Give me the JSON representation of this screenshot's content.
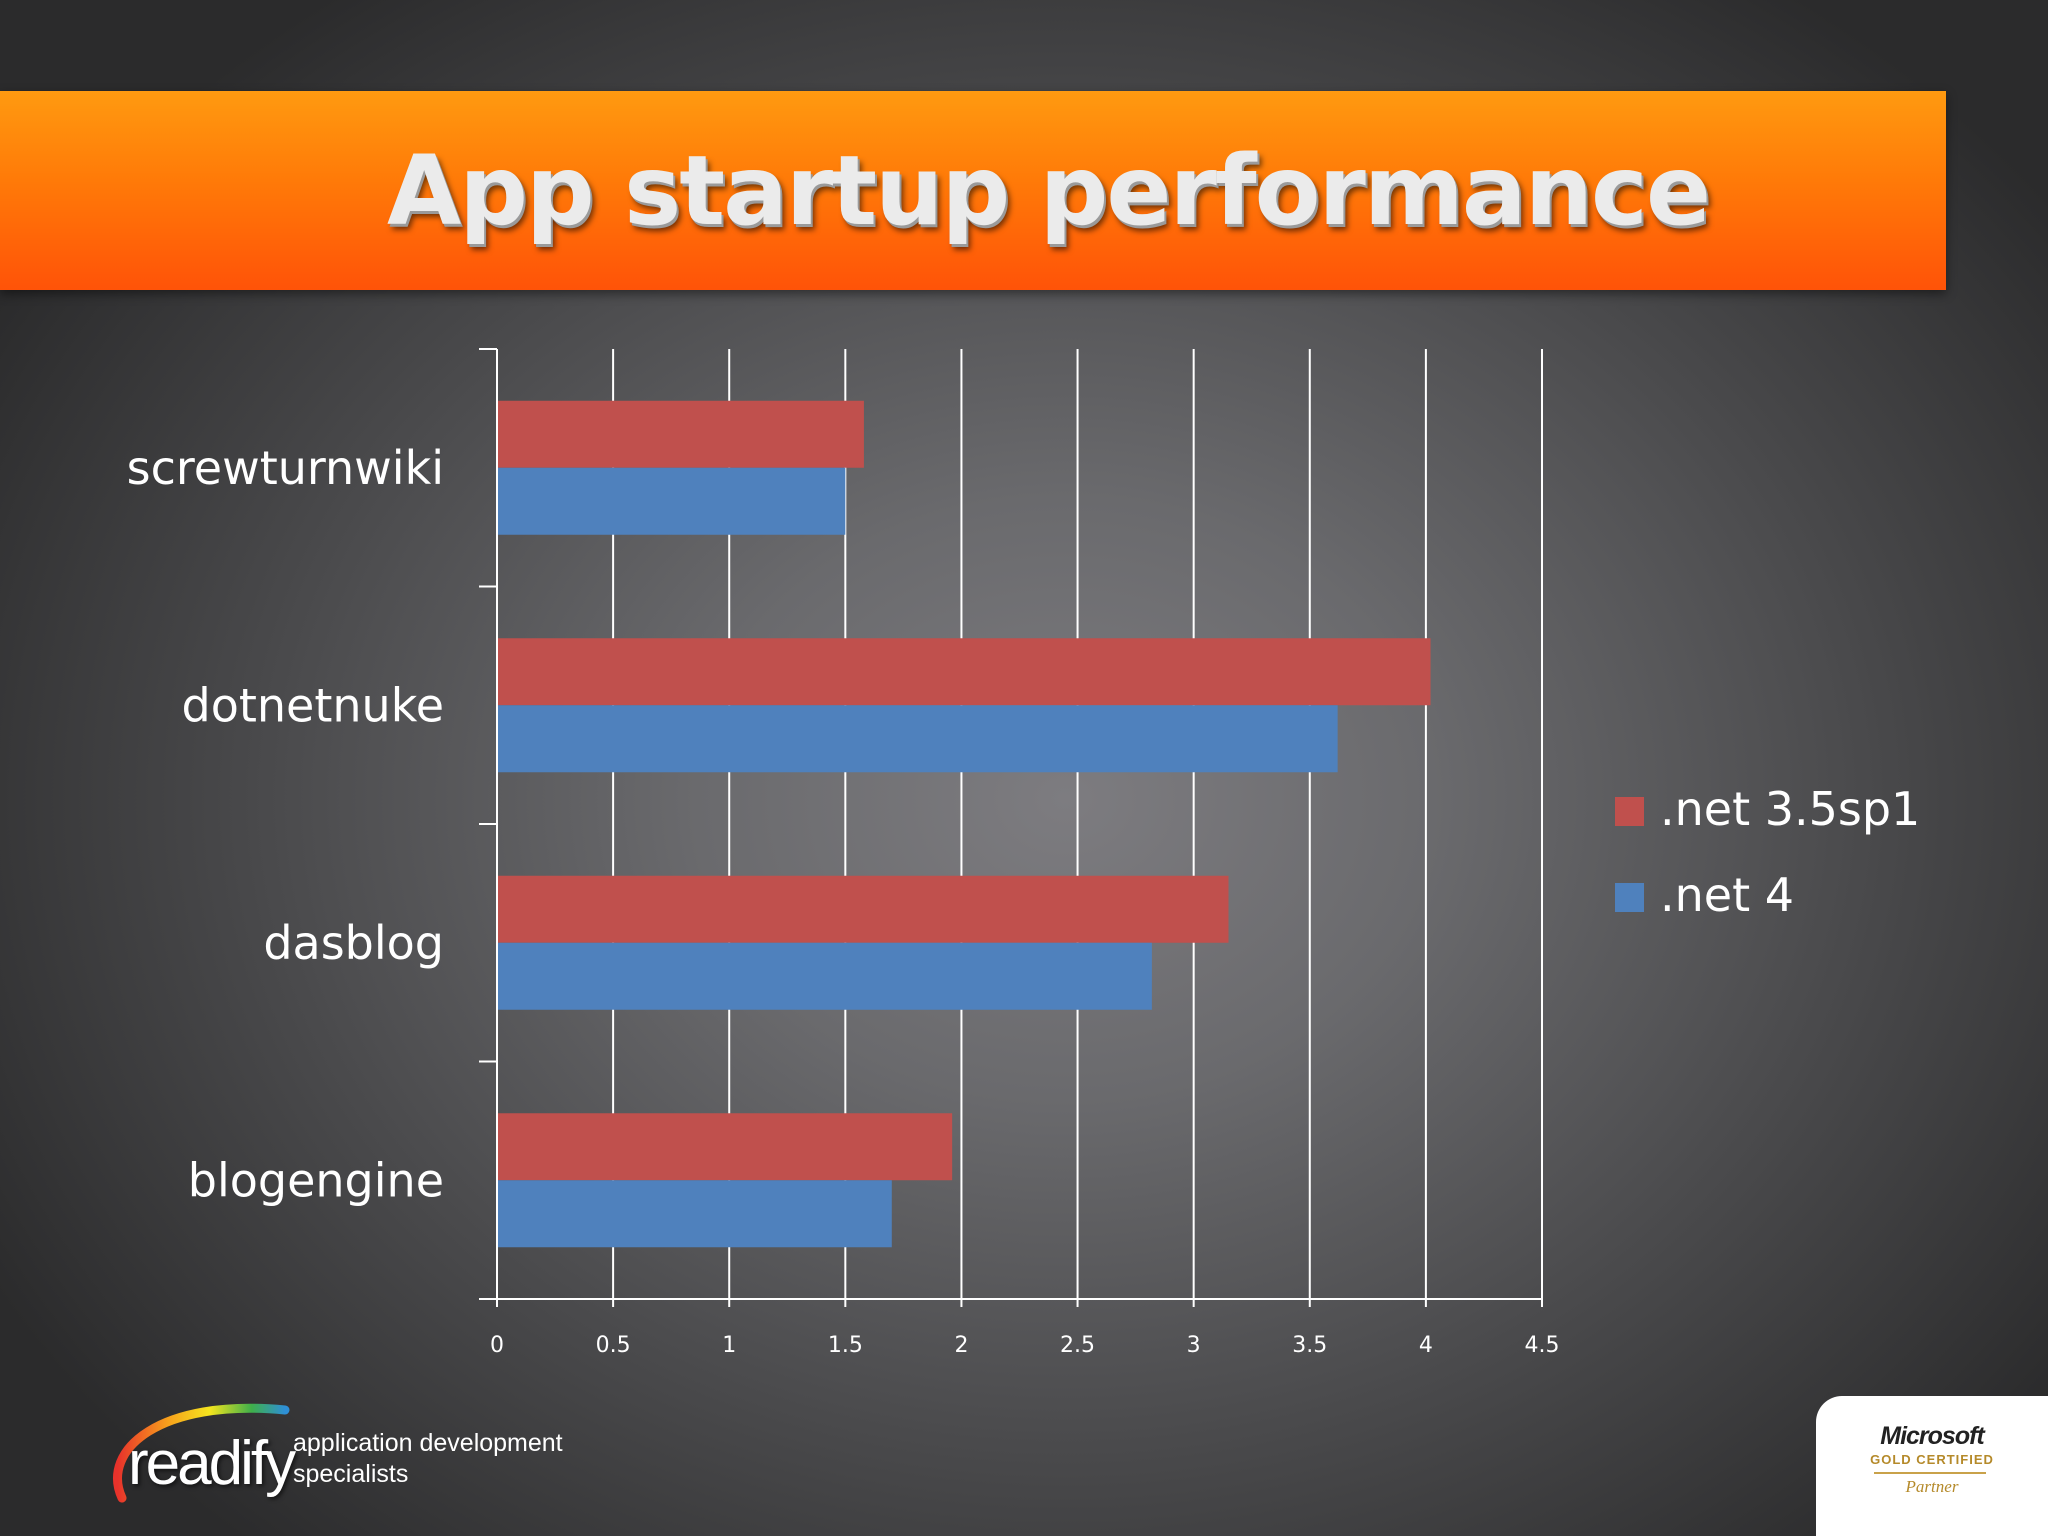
{
  "slide": {
    "title": "App startup performance"
  },
  "chart_data": {
    "type": "bar",
    "orientation": "horizontal",
    "title": "",
    "xlabel": "",
    "ylabel": "",
    "categories": [
      "screwturnwiki",
      "dotnetnuke",
      "dasblog",
      "blogengine"
    ],
    "series": [
      {
        "name": ".net 3.5sp1",
        "color": "#c0504d",
        "values": [
          1.58,
          4.02,
          3.15,
          1.96
        ]
      },
      {
        "name": ".net 4",
        "color": "#4f81bd",
        "values": [
          1.5,
          3.62,
          2.82,
          1.7
        ]
      }
    ],
    "xlim": [
      0,
      4.5
    ],
    "xticks": [
      "0",
      "0.5",
      "1",
      "1.5",
      "2",
      "2.5",
      "3",
      "3.5",
      "4",
      "4.5"
    ],
    "grid": "vertical",
    "legend_position": "right"
  },
  "footer": {
    "readify_logo_text": "readify",
    "readify_tagline": "application development specialists",
    "ms_brand": "Microsoft",
    "ms_certification": "GOLD CERTIFIED",
    "ms_partner": "Partner"
  }
}
